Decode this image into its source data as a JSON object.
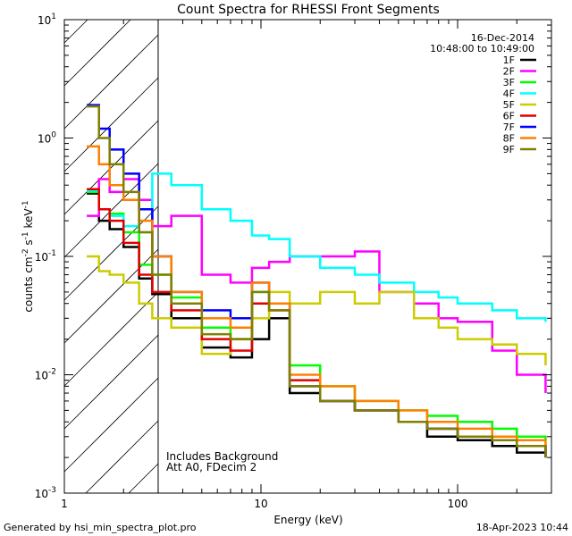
{
  "chart_data": {
    "type": "line",
    "title": "Count Spectra for RHESSI Front Segments",
    "xlabel": "Energy (keV)",
    "ylabel_parts": [
      "counts cm",
      "-2",
      " s",
      "-1",
      " keV",
      "-1"
    ],
    "x_scale": "log",
    "y_scale": "log",
    "xlim": [
      1,
      300
    ],
    "ylim": [
      0.001,
      10
    ],
    "x_ticks": [
      {
        "value": 1,
        "label": "1"
      },
      {
        "value": 10,
        "label": "10"
      },
      {
        "value": 100,
        "label": "100"
      }
    ],
    "y_ticks": [
      {
        "value": 0.001,
        "base": "10",
        "exp": "-3"
      },
      {
        "value": 0.01,
        "base": "10",
        "exp": "-2"
      },
      {
        "value": 0.1,
        "base": "10",
        "exp": "-1"
      },
      {
        "value": 1,
        "base": "10",
        "exp": "0"
      },
      {
        "value": 10,
        "base": "10",
        "exp": "1"
      }
    ],
    "shaded_region": {
      "x_from": 1,
      "x_to": 3
    },
    "legend_position": "top-right",
    "legend_header": [
      "16-Dec-2014",
      "10:48:00 to 10:49:00"
    ],
    "annotations": [
      "Includes Background",
      "Att A0, FDecim 2"
    ],
    "series": [
      {
        "name": "1F",
        "color": "#000000",
        "points": [
          [
            1.3,
            0.34
          ],
          [
            1.5,
            0.2
          ],
          [
            1.7,
            0.17
          ],
          [
            2,
            0.12
          ],
          [
            2.4,
            0.065
          ],
          [
            2.8,
            0.048
          ],
          [
            3.5,
            0.03
          ],
          [
            5,
            0.017
          ],
          [
            7,
            0.014
          ],
          [
            9,
            0.02
          ],
          [
            11,
            0.03
          ],
          [
            14,
            0.007
          ],
          [
            20,
            0.006
          ],
          [
            30,
            0.005
          ],
          [
            50,
            0.004
          ],
          [
            70,
            0.003
          ],
          [
            100,
            0.0028
          ],
          [
            150,
            0.0025
          ],
          [
            200,
            0.0022
          ],
          [
            280,
            0.002
          ]
        ]
      },
      {
        "name": "2F",
        "color": "#ff00ff",
        "points": [
          [
            1.3,
            0.22
          ],
          [
            1.5,
            0.45
          ],
          [
            1.7,
            0.35
          ],
          [
            2,
            0.45
          ],
          [
            2.4,
            0.3
          ],
          [
            2.8,
            0.18
          ],
          [
            3.5,
            0.22
          ],
          [
            5,
            0.07
          ],
          [
            7,
            0.06
          ],
          [
            9,
            0.08
          ],
          [
            11,
            0.09
          ],
          [
            14,
            0.1
          ],
          [
            20,
            0.1
          ],
          [
            30,
            0.11
          ],
          [
            40,
            0.05
          ],
          [
            60,
            0.04
          ],
          [
            80,
            0.03
          ],
          [
            100,
            0.028
          ],
          [
            150,
            0.016
          ],
          [
            200,
            0.01
          ],
          [
            280,
            0.007
          ]
        ]
      },
      {
        "name": "3F",
        "color": "#00ff00",
        "points": [
          [
            1.3,
            0.35
          ],
          [
            1.5,
            0.25
          ],
          [
            1.7,
            0.23
          ],
          [
            2,
            0.16
          ],
          [
            2.4,
            0.085
          ],
          [
            2.8,
            0.07
          ],
          [
            3.5,
            0.045
          ],
          [
            5,
            0.025
          ],
          [
            7,
            0.02
          ],
          [
            9,
            0.05
          ],
          [
            11,
            0.04
          ],
          [
            14,
            0.012
          ],
          [
            20,
            0.008
          ],
          [
            30,
            0.006
          ],
          [
            50,
            0.005
          ],
          [
            70,
            0.0045
          ],
          [
            100,
            0.004
          ],
          [
            150,
            0.0035
          ],
          [
            200,
            0.003
          ],
          [
            280,
            0.0028
          ]
        ]
      },
      {
        "name": "4F",
        "color": "#00ffff",
        "points": [
          [
            1.3,
            0.36
          ],
          [
            1.5,
            0.25
          ],
          [
            1.7,
            0.22
          ],
          [
            2,
            0.18
          ],
          [
            2.4,
            0.16
          ],
          [
            2.8,
            0.5
          ],
          [
            3.5,
            0.4
          ],
          [
            5,
            0.25
          ],
          [
            7,
            0.2
          ],
          [
            9,
            0.15
          ],
          [
            11,
            0.14
          ],
          [
            14,
            0.1
          ],
          [
            20,
            0.08
          ],
          [
            30,
            0.07
          ],
          [
            40,
            0.06
          ],
          [
            60,
            0.05
          ],
          [
            80,
            0.045
          ],
          [
            100,
            0.04
          ],
          [
            150,
            0.035
          ],
          [
            200,
            0.03
          ],
          [
            280,
            0.028
          ]
        ]
      },
      {
        "name": "5F",
        "color": "#cccc00",
        "points": [
          [
            1.3,
            0.1
          ],
          [
            1.5,
            0.075
          ],
          [
            1.7,
            0.07
          ],
          [
            2,
            0.06
          ],
          [
            2.4,
            0.04
          ],
          [
            2.8,
            0.03
          ],
          [
            3.5,
            0.025
          ],
          [
            5,
            0.015
          ],
          [
            7,
            0.02
          ],
          [
            9,
            0.03
          ],
          [
            11,
            0.05
          ],
          [
            14,
            0.04
          ],
          [
            20,
            0.05
          ],
          [
            30,
            0.04
          ],
          [
            40,
            0.05
          ],
          [
            60,
            0.03
          ],
          [
            80,
            0.025
          ],
          [
            100,
            0.02
          ],
          [
            150,
            0.018
          ],
          [
            200,
            0.015
          ],
          [
            280,
            0.012
          ]
        ]
      },
      {
        "name": "6F",
        "color": "#e00000",
        "points": [
          [
            1.3,
            0.37
          ],
          [
            1.5,
            0.25
          ],
          [
            1.7,
            0.2
          ],
          [
            2,
            0.13
          ],
          [
            2.4,
            0.07
          ],
          [
            2.8,
            0.05
          ],
          [
            3.5,
            0.035
          ],
          [
            5,
            0.02
          ],
          [
            7,
            0.016
          ],
          [
            9,
            0.04
          ],
          [
            11,
            0.035
          ],
          [
            14,
            0.009
          ],
          [
            20,
            0.006
          ],
          [
            30,
            0.005
          ],
          [
            50,
            0.004
          ],
          [
            70,
            0.0035
          ],
          [
            100,
            0.003
          ],
          [
            150,
            0.0028
          ],
          [
            200,
            0.0025
          ],
          [
            280,
            0.0022
          ]
        ]
      },
      {
        "name": "7F",
        "color": "#0000ff",
        "points": [
          [
            1.3,
            1.9
          ],
          [
            1.5,
            1.2
          ],
          [
            1.7,
            0.8
          ],
          [
            2,
            0.5
          ],
          [
            2.4,
            0.25
          ],
          [
            2.8,
            0.1
          ],
          [
            3.5,
            0.05
          ],
          [
            5,
            0.035
          ],
          [
            7,
            0.03
          ],
          [
            9,
            0.06
          ],
          [
            11,
            0.04
          ],
          [
            14,
            0.008
          ],
          [
            20,
            0.006
          ],
          [
            30,
            0.005
          ],
          [
            50,
            0.004
          ],
          [
            70,
            0.0035
          ],
          [
            100,
            0.003
          ],
          [
            150,
            0.0028
          ],
          [
            200,
            0.0025
          ],
          [
            280,
            0.002
          ]
        ]
      },
      {
        "name": "8F",
        "color": "#ff8000",
        "points": [
          [
            1.3,
            0.85
          ],
          [
            1.5,
            0.6
          ],
          [
            1.7,
            0.4
          ],
          [
            2,
            0.3
          ],
          [
            2.4,
            0.2
          ],
          [
            2.8,
            0.1
          ],
          [
            3.5,
            0.05
          ],
          [
            5,
            0.03
          ],
          [
            7,
            0.025
          ],
          [
            9,
            0.06
          ],
          [
            11,
            0.04
          ],
          [
            14,
            0.01
          ],
          [
            20,
            0.008
          ],
          [
            30,
            0.006
          ],
          [
            50,
            0.005
          ],
          [
            70,
            0.004
          ],
          [
            100,
            0.0035
          ],
          [
            150,
            0.003
          ],
          [
            200,
            0.0028
          ],
          [
            280,
            0.0025
          ]
        ]
      },
      {
        "name": "9F",
        "color": "#808000",
        "points": [
          [
            1.3,
            1.85
          ],
          [
            1.5,
            1.0
          ],
          [
            1.7,
            0.6
          ],
          [
            2,
            0.35
          ],
          [
            2.4,
            0.16
          ],
          [
            2.8,
            0.07
          ],
          [
            3.5,
            0.04
          ],
          [
            5,
            0.022
          ],
          [
            7,
            0.02
          ],
          [
            9,
            0.05
          ],
          [
            11,
            0.035
          ],
          [
            14,
            0.008
          ],
          [
            20,
            0.006
          ],
          [
            30,
            0.005
          ],
          [
            50,
            0.004
          ],
          [
            70,
            0.0035
          ],
          [
            100,
            0.003
          ],
          [
            150,
            0.0028
          ],
          [
            200,
            0.0025
          ],
          [
            280,
            0.002
          ]
        ]
      }
    ]
  },
  "footer": {
    "generated": "Generated by hsi_min_spectra_plot.pro",
    "date": "18-Apr-2023 10:44"
  }
}
